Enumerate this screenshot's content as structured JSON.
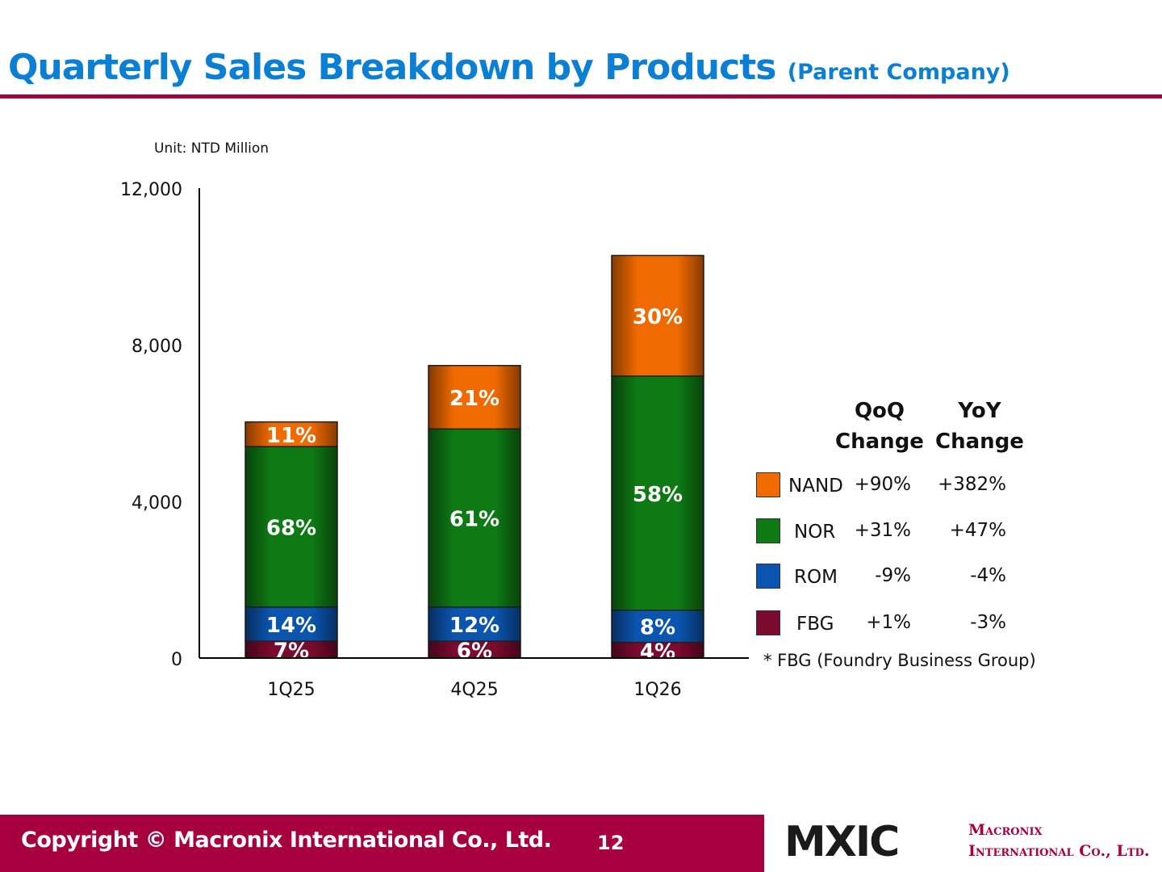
{
  "slide": {
    "title_main": "Quarterly Sales Breakdown by Products",
    "title_sub": "(Parent Company)",
    "unit": "Unit: NTD Million"
  },
  "chart_data": {
    "type": "bar",
    "stacked": true,
    "categories": [
      "1Q25",
      "4Q25",
      "1Q26"
    ],
    "ylim": [
      0,
      12000
    ],
    "yticks": [
      0,
      4000,
      8000,
      12000
    ],
    "ytick_labels": [
      "0",
      "4,000",
      "8,000",
      "12,000"
    ],
    "series": [
      {
        "name": "FBG",
        "color": "#7a0a2e",
        "values": [
          430,
          430,
          400
        ],
        "labels": [
          "7%",
          "6%",
          "4%"
        ]
      },
      {
        "name": "ROM",
        "color": "#0b55b0",
        "values": [
          870,
          870,
          820
        ],
        "labels": [
          "14%",
          "12%",
          "8%"
        ]
      },
      {
        "name": "NOR",
        "color": "#0e7a14",
        "values": [
          4100,
          4550,
          5980
        ],
        "labels": [
          "68%",
          "61%",
          "58%"
        ]
      },
      {
        "name": "NAND",
        "color": "#f06a00",
        "values": [
          630,
          1620,
          3080
        ],
        "labels": [
          "11%",
          "21%",
          "30%"
        ]
      }
    ]
  },
  "legend": {
    "qoq_header_1": "QoQ",
    "qoq_header_2": "Change",
    "yoy_header_1": "YoY",
    "yoy_header_2": "Change",
    "rows": [
      {
        "name": "NAND",
        "color": "#f06a00",
        "qoq": "+90%",
        "yoy": "+382%"
      },
      {
        "name": "NOR",
        "color": "#0e7a14",
        "qoq": "+31%",
        "yoy": "+47%"
      },
      {
        "name": "ROM",
        "color": "#0b55b0",
        "qoq": "-9%",
        "yoy": "-4%"
      },
      {
        "name": "FBG",
        "color": "#7a0a2e",
        "qoq": "+1%",
        "yoy": "-3%"
      }
    ],
    "note": "* FBG (Foundry Business Group)"
  },
  "footer": {
    "copyright": "Copyright © Macronix International Co., Ltd.",
    "page": "12",
    "logo_mark": "MXIC",
    "logo_line1": "Macronix",
    "logo_line2": "International Co., Ltd."
  },
  "colors": {
    "brand": "#a6003f",
    "title": "#0a7fd4"
  }
}
